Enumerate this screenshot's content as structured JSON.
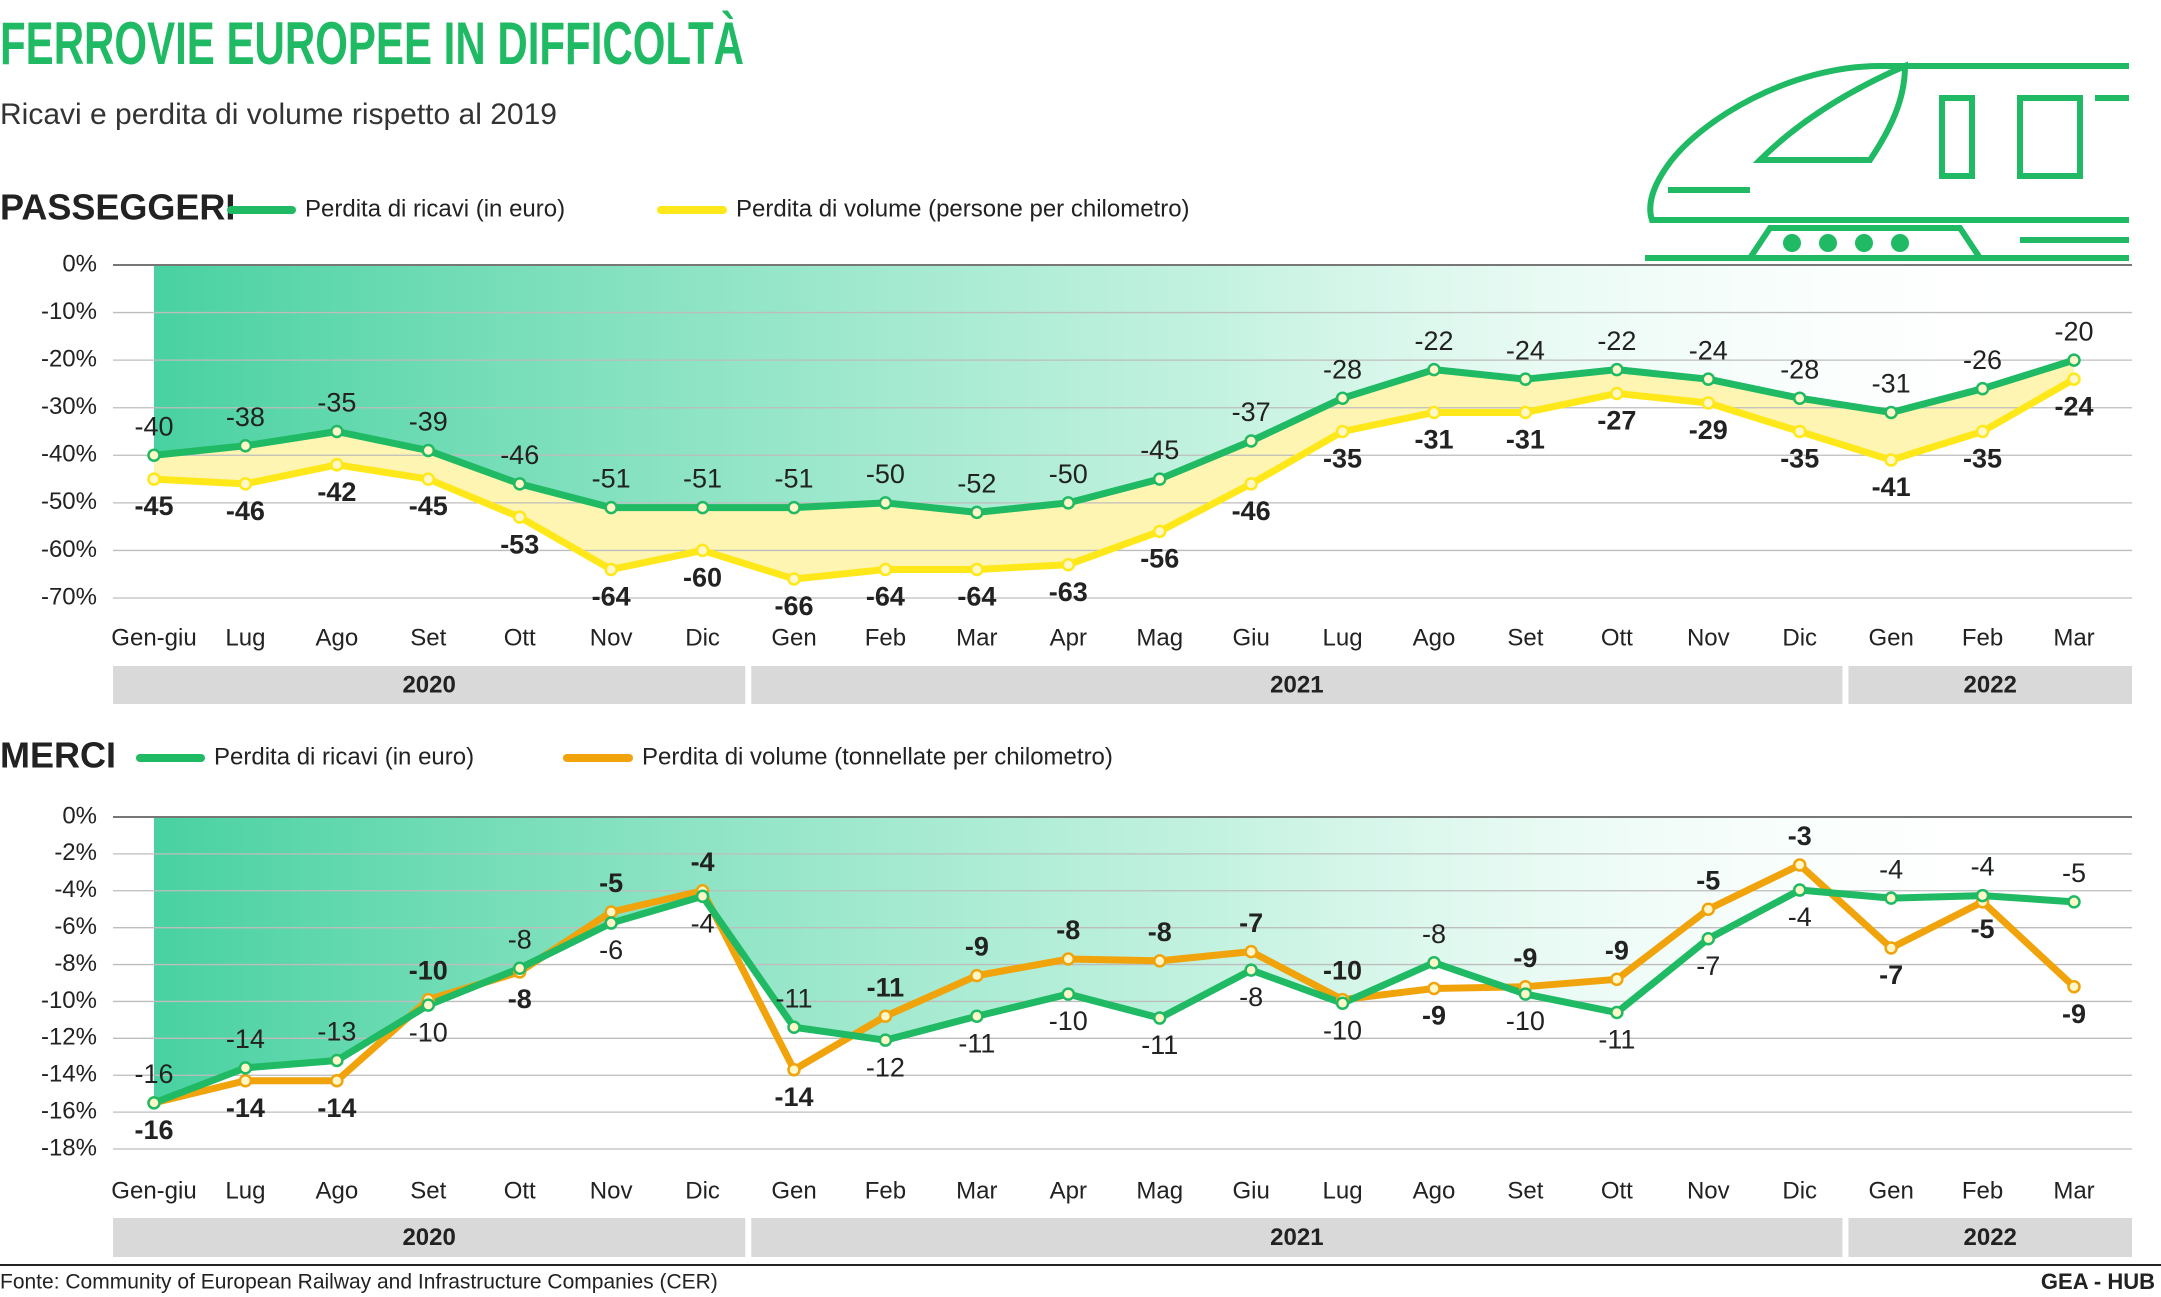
{
  "header": {
    "title": "FERROVIE EUROPEE IN DIFFICOLTÀ",
    "subtitle": "Ricavi e perdita di volume rispetto al 2019"
  },
  "chart_data": [
    {
      "type": "line",
      "title": "PASSEGGERI",
      "categories": [
        "Gen-giu",
        "Lug",
        "Ago",
        "Set",
        "Ott",
        "Nov",
        "Dic",
        "Gen",
        "Feb",
        "Mar",
        "Apr",
        "Mag",
        "Giu",
        "Lug",
        "Ago",
        "Set",
        "Ott",
        "Nov",
        "Dic",
        "Gen",
        "Feb",
        "Mar"
      ],
      "category_groups": [
        "2020",
        "2020",
        "2020",
        "2020",
        "2020",
        "2020",
        "2020",
        "2021",
        "2021",
        "2021",
        "2021",
        "2021",
        "2021",
        "2021",
        "2021",
        "2021",
        "2021",
        "2021",
        "2021",
        "2022",
        "2022",
        "2022"
      ],
      "series": [
        {
          "name": "Perdita di ricavi (in euro)",
          "color": "#1fba63",
          "values": [
            -40,
            -38,
            -35,
            -39,
            -46,
            -51,
            -51,
            -51,
            -50,
            -52,
            -50,
            -45,
            -37,
            -28,
            -22,
            -24,
            -22,
            -24,
            -28,
            -31,
            -26,
            -20
          ]
        },
        {
          "name": "Perdita di volume (persone per chilometro)",
          "color": "#ffe81a",
          "values": [
            -45,
            -46,
            -42,
            -45,
            -53,
            -64,
            -60,
            -66,
            -64,
            -64,
            -63,
            -56,
            -46,
            -35,
            -31,
            -31,
            -27,
            -29,
            -35,
            -41,
            -35,
            -24
          ]
        }
      ],
      "ylim": [
        -70,
        0
      ],
      "yticks": [
        {
          "value": 0,
          "label": "0%"
        },
        {
          "value": -10,
          "label": "-10%"
        },
        {
          "value": -20,
          "label": "-20%"
        },
        {
          "value": -30,
          "label": "-30%"
        },
        {
          "value": -40,
          "label": "-40%"
        },
        {
          "value": -50,
          "label": "-50%"
        },
        {
          "value": -60,
          "label": "-60%"
        },
        {
          "value": -70,
          "label": "-70%"
        }
      ],
      "grid": true
    },
    {
      "type": "line",
      "title": "MERCI",
      "categories": [
        "Gen-giu",
        "Lug",
        "Ago",
        "Set",
        "Ott",
        "Nov",
        "Dic",
        "Gen",
        "Feb",
        "Mar",
        "Apr",
        "Mag",
        "Giu",
        "Lug",
        "Ago",
        "Set",
        "Ott",
        "Nov",
        "Dic",
        "Gen",
        "Feb",
        "Mar"
      ],
      "category_groups": [
        "2020",
        "2020",
        "2020",
        "2020",
        "2020",
        "2020",
        "2020",
        "2021",
        "2021",
        "2021",
        "2021",
        "2021",
        "2021",
        "2021",
        "2021",
        "2021",
        "2021",
        "2021",
        "2021",
        "2022",
        "2022",
        "2022"
      ],
      "series": [
        {
          "name": "Perdita di ricavi (in euro)",
          "color": "#1fba63",
          "values": [
            -15.5,
            -13.6,
            -13.2,
            -10.2,
            -8.2,
            -5.75,
            -4.3,
            -11.4,
            -12.1,
            -10.8,
            -9.6,
            -10.9,
            -8.3,
            -10.1,
            -7.9,
            -9.6,
            -10.6,
            -6.6,
            -3.96,
            -4.4,
            -4.26,
            -4.6
          ],
          "value_labels": [
            "-16",
            "-14",
            "-13",
            "-10",
            "-8",
            "-6",
            "-4",
            "-11",
            "-12",
            "-11",
            "-10",
            "-11",
            "-8",
            "-10",
            "-8",
            "-10",
            "-11",
            "-7",
            "-4",
            "-4",
            "-4",
            "-5"
          ]
        },
        {
          "name": "Perdita di volume (tonnellate per chilometro)",
          "color": "#f0a30a",
          "values": [
            -15.5,
            -14.3,
            -14.3,
            -9.9,
            -8.4,
            -5.15,
            -4.0,
            -13.7,
            -10.8,
            -8.6,
            -7.7,
            -7.8,
            -7.3,
            -9.9,
            -9.3,
            -9.2,
            -8.8,
            -5.0,
            -2.6,
            -7.1,
            -4.6,
            -9.2
          ],
          "value_labels": [
            "-16",
            "-14",
            "-14",
            "-10",
            "-8",
            "-5",
            "-4",
            "-14",
            "-11",
            "-9",
            "-8",
            "-8",
            "-7",
            "-10",
            "-9",
            "-9",
            "-9",
            "-5",
            "-3",
            "-7",
            "-5",
            "-9"
          ]
        }
      ],
      "ylim": [
        -18,
        0
      ],
      "yticks": [
        {
          "value": 0,
          "label": "0%"
        },
        {
          "value": -2,
          "label": "-2%"
        },
        {
          "value": -4,
          "label": "-4%"
        },
        {
          "value": -6,
          "label": "-6%"
        },
        {
          "value": -8,
          "label": "-8%"
        },
        {
          "value": -10,
          "label": "-10%"
        },
        {
          "value": -12,
          "label": "-12%"
        },
        {
          "value": -14,
          "label": "-14%"
        },
        {
          "value": -16,
          "label": "-16%"
        },
        {
          "value": -18,
          "label": "-18%"
        }
      ],
      "grid": true
    }
  ],
  "footer": {
    "source": "Fonte: Community of European Railway and Infrastructure Companies (CER)",
    "credit": "GEA - HUB"
  }
}
